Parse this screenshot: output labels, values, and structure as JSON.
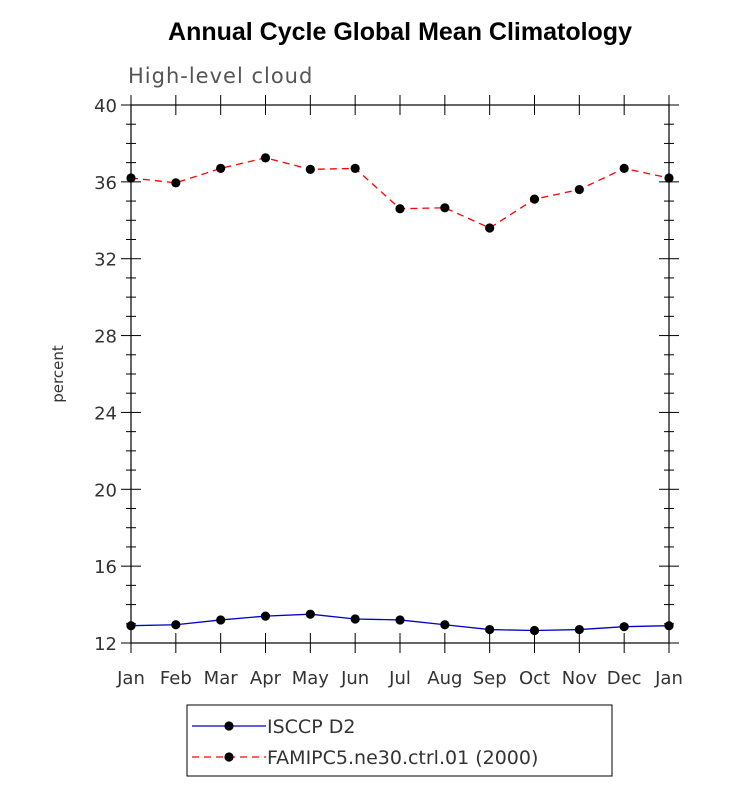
{
  "chart_data": {
    "type": "line",
    "title": "Annual Cycle Global Mean Climatology",
    "subtitle": "High-level cloud",
    "ylabel": "percent",
    "xlabel": "",
    "categories": [
      "Jan",
      "Feb",
      "Mar",
      "Apr",
      "May",
      "Jun",
      "Jul",
      "Aug",
      "Sep",
      "Oct",
      "Nov",
      "Dec",
      "Jan"
    ],
    "ylim": [
      12,
      40
    ],
    "yticks": [
      12,
      16,
      20,
      24,
      28,
      32,
      36,
      40
    ],
    "grid": false,
    "legend_position": "bottom-center",
    "series": [
      {
        "name": "ISCCP D2",
        "color": "#0000cc",
        "line_style": "solid",
        "values": [
          12.9,
          12.95,
          13.2,
          13.4,
          13.5,
          13.25,
          13.2,
          12.95,
          12.7,
          12.65,
          12.7,
          12.85,
          12.9
        ]
      },
      {
        "name": "FAMIPC5.ne30.ctrl.01 (2000)",
        "color": "#ff0000",
        "line_style": "dashed",
        "values": [
          36.2,
          35.95,
          36.7,
          37.25,
          36.65,
          36.7,
          34.6,
          34.65,
          33.6,
          35.1,
          35.6,
          36.7,
          36.2
        ]
      }
    ]
  }
}
